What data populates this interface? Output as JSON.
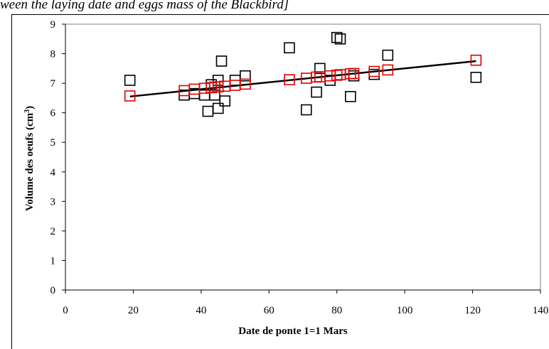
{
  "caption": "ween the laying date and eggs mass of the Blackbird]",
  "chart_data": {
    "type": "scatter",
    "title": "",
    "xlabel": "Date de ponte 1=1 Mars",
    "ylabel": "Volume des oeufs (cm",
    "ylabel_sup": "3",
    "ylabel_end": ")",
    "xlim": [
      0,
      140
    ],
    "ylim": [
      0,
      9
    ],
    "xticks": [
      0,
      20,
      40,
      60,
      80,
      100,
      120,
      140
    ],
    "xtick_labels": [
      "0",
      "20",
      "40",
      "60",
      "80",
      "100",
      "120",
      "140"
    ],
    "yticks": [
      0,
      1,
      2,
      3,
      4,
      5,
      6,
      7,
      8,
      9
    ],
    "ytick_labels": [
      "0",
      "1",
      "2",
      "3",
      "4",
      "5",
      "6",
      "7",
      "8",
      "9"
    ],
    "grid": false,
    "colors": {
      "observed": "#000000",
      "predicted": "#e00000",
      "trend": "#000000"
    },
    "series": [
      {
        "marker": "square-open",
        "color": "#000000",
        "points": [
          [
            19,
            7.1
          ],
          [
            35,
            6.6
          ],
          [
            38,
            6.65
          ],
          [
            41,
            6.6
          ],
          [
            42,
            6.05
          ],
          [
            43,
            6.95
          ],
          [
            44,
            6.6
          ],
          [
            45,
            6.15
          ],
          [
            45,
            7.1
          ],
          [
            46,
            7.75
          ],
          [
            47,
            6.4
          ],
          [
            50,
            7.1
          ],
          [
            53,
            7.25
          ],
          [
            66,
            8.2
          ],
          [
            71,
            6.1
          ],
          [
            74,
            6.7
          ],
          [
            75,
            7.5
          ],
          [
            78,
            7.1
          ],
          [
            80,
            8.55
          ],
          [
            81,
            8.5
          ],
          [
            84,
            6.55
          ],
          [
            85,
            7.25
          ],
          [
            91,
            7.3
          ],
          [
            95,
            7.95
          ],
          [
            121,
            7.2
          ]
        ]
      },
      {
        "marker": "square-open",
        "color": "#e00000",
        "points": [
          [
            19,
            6.57
          ],
          [
            35,
            6.75
          ],
          [
            38,
            6.8
          ],
          [
            41,
            6.83
          ],
          [
            43,
            6.85
          ],
          [
            44,
            6.87
          ],
          [
            45,
            6.88
          ],
          [
            47,
            6.9
          ],
          [
            50,
            6.93
          ],
          [
            53,
            6.97
          ],
          [
            66,
            7.12
          ],
          [
            71,
            7.17
          ],
          [
            74,
            7.21
          ],
          [
            75,
            7.22
          ],
          [
            78,
            7.25
          ],
          [
            80,
            7.27
          ],
          [
            81,
            7.29
          ],
          [
            84,
            7.32
          ],
          [
            85,
            7.33
          ],
          [
            91,
            7.4
          ],
          [
            95,
            7.45
          ],
          [
            121,
            7.78
          ]
        ]
      }
    ],
    "trendline": {
      "x": [
        19,
        121
      ],
      "y": [
        6.55,
        7.75
      ]
    }
  }
}
